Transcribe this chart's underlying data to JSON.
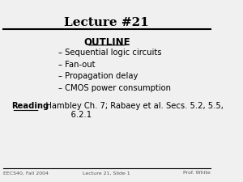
{
  "title": "Lecture #21",
  "outline_label": "OUTLINE",
  "bullets": [
    "– Sequential logic circuits",
    "– Fan-out",
    "– Propagation delay",
    "– CMOS power consumption"
  ],
  "reading_bold": "Reading",
  "reading_rest": ": Hambley Ch. 7; Rabaey et al. Secs. 5.2, 5.5,\n            6.2.1",
  "footer_left": "EECS40, Fall 2004",
  "footer_center": "Lecture 21, Slide 1",
  "footer_right": "Prof. White",
  "bg_color": "#f0f0f0",
  "title_line_color": "#000000",
  "footer_line_color": "#000000",
  "text_color": "#000000",
  "footer_text_color": "#555555"
}
